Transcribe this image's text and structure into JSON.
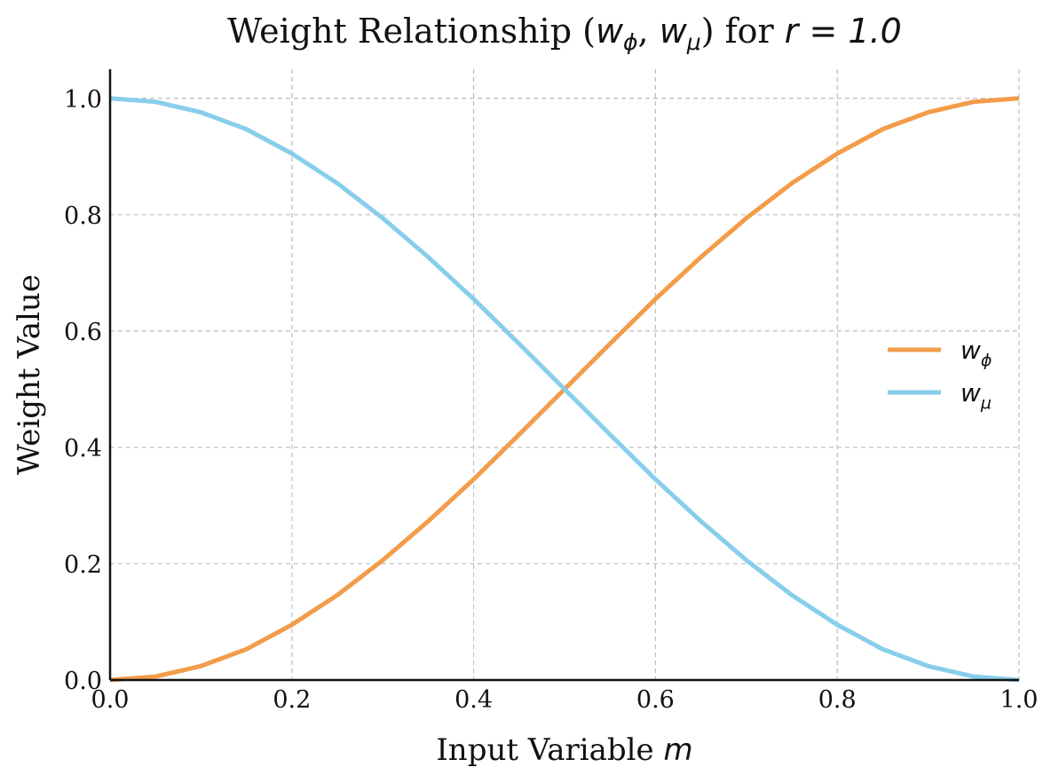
{
  "chart_data": {
    "type": "line",
    "title": {
      "prefix": "Weight Relationship (",
      "phi_symbol": "w",
      "phi_subscript": "ϕ",
      "comma": ", ",
      "mu_symbol": "w",
      "mu_subscript": "μ",
      "middle": ") for ",
      "r_symbol": "r",
      "suffix": " = 1.0"
    },
    "xlabel": {
      "text": "Input Variable ",
      "math": "m"
    },
    "ylabel": "Weight Value",
    "xlim": [
      0.0,
      1.0
    ],
    "ylim": [
      0.0,
      1.05
    ],
    "xticks": [
      "0.0",
      "0.2",
      "0.4",
      "0.6",
      "0.8",
      "1.0"
    ],
    "yticks": [
      "0.0",
      "0.2",
      "0.4",
      "0.6",
      "0.8",
      "1.0"
    ],
    "grid": true,
    "legend_position": "right",
    "x": [
      0.0,
      0.05,
      0.1,
      0.15,
      0.2,
      0.25,
      0.3,
      0.35,
      0.4,
      0.45,
      0.5,
      0.55,
      0.6,
      0.65,
      0.7,
      0.75,
      0.8,
      0.85,
      0.9,
      0.95,
      1.0
    ],
    "series": [
      {
        "name_symbol": "w",
        "name_subscript": "ϕ",
        "color": "#f39c4a",
        "values": [
          0.0,
          0.006,
          0.024,
          0.053,
          0.095,
          0.146,
          0.206,
          0.273,
          0.345,
          0.422,
          0.5,
          0.578,
          0.655,
          0.727,
          0.794,
          0.854,
          0.905,
          0.947,
          0.976,
          0.994,
          1.0
        ]
      },
      {
        "name_symbol": "w",
        "name_subscript": "μ",
        "color": "#87ceeb",
        "values": [
          1.0,
          0.994,
          0.976,
          0.947,
          0.905,
          0.854,
          0.794,
          0.727,
          0.655,
          0.578,
          0.5,
          0.422,
          0.345,
          0.273,
          0.206,
          0.146,
          0.095,
          0.053,
          0.024,
          0.006,
          0.0
        ]
      }
    ]
  }
}
